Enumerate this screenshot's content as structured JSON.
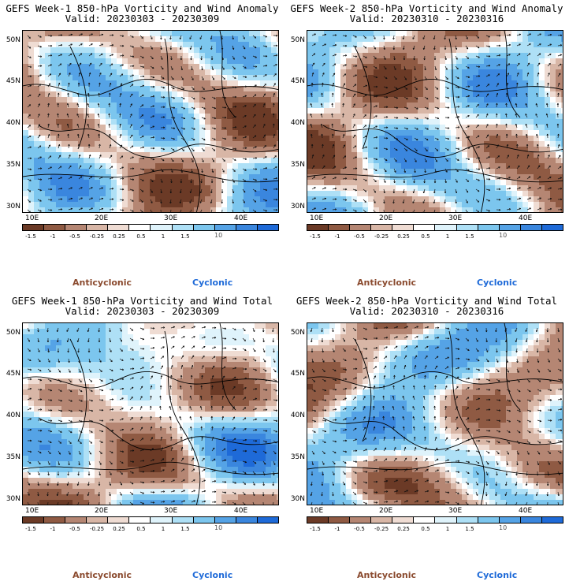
{
  "panels": [
    {
      "title": "GEFS Week-1 850-hPa Vorticity and Wind Anomaly",
      "valid": "Valid: 20230303 - 20230309",
      "seed": 3
    },
    {
      "title": "GEFS Week-2 850-hPa Vorticity and Wind Anomaly",
      "valid": "Valid: 20230310 - 20230316",
      "seed": 11
    },
    {
      "title": "GEFS Week-1 850-hPa Vorticity and Wind Total",
      "valid": "Valid: 20230303 - 20230309",
      "seed": 19
    },
    {
      "title": "GEFS Week-2 850-hPa Vorticity and Wind Total",
      "valid": "Valid: 20230310 - 20230316",
      "seed": 27
    }
  ],
  "lat_labels": [
    "50N",
    "45N",
    "40N",
    "35N",
    "30N"
  ],
  "lon_labels": [
    "10E",
    "20E",
    "30E",
    "40E"
  ],
  "colorbar": {
    "labels": [
      "-1.5",
      "-1",
      "-0.5",
      "-0.25",
      "0.25",
      "0.5",
      "1",
      "1.5"
    ],
    "center_label": "10",
    "colors": [
      "#6b3a26",
      "#8f5a43",
      "#b58673",
      "#d8b6a6",
      "#efdcd3",
      "#ffffff",
      "#dff3fb",
      "#aee0f6",
      "#7cc6ee",
      "#55a3e6",
      "#3a86de",
      "#1e6ad8"
    ]
  },
  "legend": {
    "anticyclonic": "Anticyclonic",
    "cyclonic": "Cyclonic"
  }
}
